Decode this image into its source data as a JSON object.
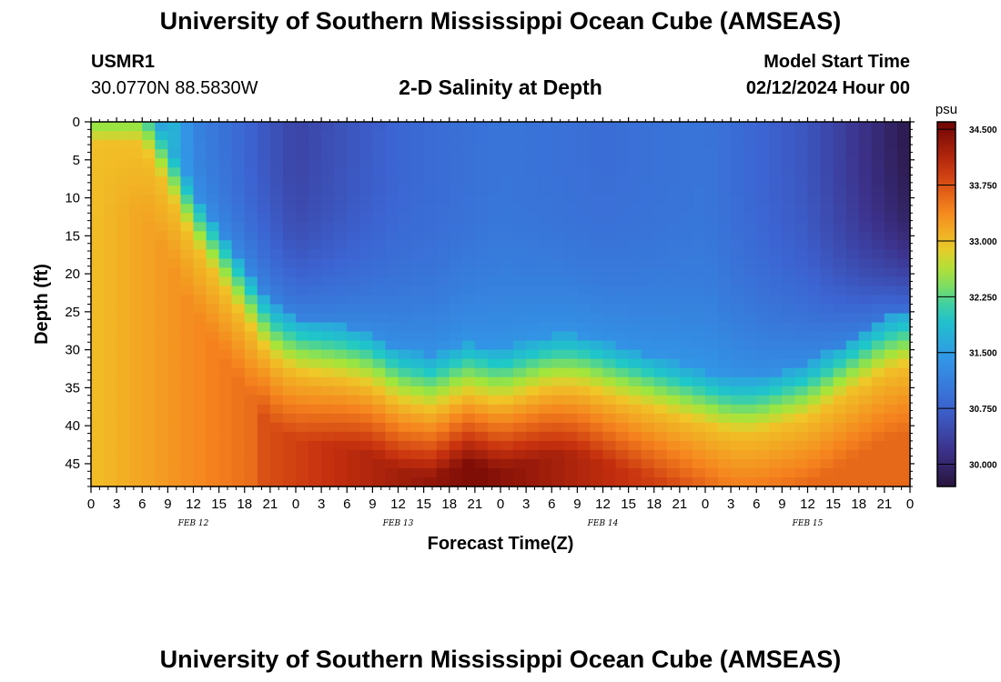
{
  "header": {
    "title": "University of Southern Mississippi Ocean Cube (AMSEAS)",
    "station": "USMR1",
    "coords": "30.0770N  88.5830W",
    "plot_title": "2-D Salinity at Depth",
    "model_start_label": "Model Start Time",
    "model_start_value": "02/12/2024 Hour 00"
  },
  "footer": {
    "title": "University of Southern Mississippi Ocean Cube (AMSEAS)"
  },
  "chart_data": {
    "type": "heatmap",
    "title": "2-D Salinity at Depth",
    "xlabel": "Forecast Time(Z)",
    "ylabel": "Depth (ft)",
    "x_ticks": [
      "0",
      "3",
      "6",
      "9",
      "12",
      "15",
      "18",
      "21",
      "0",
      "3",
      "6",
      "9",
      "12",
      "15",
      "18",
      "21",
      "0",
      "3",
      "6",
      "9",
      "12",
      "15",
      "18",
      "21",
      "0",
      "3",
      "6",
      "9",
      "12",
      "15",
      "18",
      "21",
      "0"
    ],
    "x_hours_range": [
      0,
      96
    ],
    "date_labels": [
      {
        "label": "FEB 12",
        "hour": 12
      },
      {
        "label": "FEB 13",
        "hour": 36
      },
      {
        "label": "FEB 14",
        "hour": 60
      },
      {
        "label": "FEB 15",
        "hour": 84
      }
    ],
    "y_ticks": [
      "0",
      "5",
      "10",
      "15",
      "20",
      "25",
      "30",
      "35",
      "40",
      "45"
    ],
    "y_range_ft": [
      0,
      48
    ],
    "colorbar": {
      "unit": "psu",
      "ticks": [
        "34.500",
        "33.750",
        "33.000",
        "32.250",
        "31.500",
        "30.750",
        "30.000"
      ],
      "range": [
        29.7,
        34.6
      ]
    },
    "interface_depth_ft": [
      {
        "hour": 0,
        "depth": 0
      },
      {
        "hour": 6,
        "depth": 0
      },
      {
        "hour": 9,
        "depth": 6
      },
      {
        "hour": 12,
        "depth": 13
      },
      {
        "hour": 15,
        "depth": 18
      },
      {
        "hour": 18,
        "depth": 23
      },
      {
        "hour": 21,
        "depth": 28
      },
      {
        "hour": 24,
        "depth": 30
      },
      {
        "hour": 30,
        "depth": 31
      },
      {
        "hour": 33,
        "depth": 32
      },
      {
        "hour": 36,
        "depth": 34
      },
      {
        "hour": 40,
        "depth": 35
      },
      {
        "hour": 44,
        "depth": 33
      },
      {
        "hour": 48,
        "depth": 34
      },
      {
        "hour": 51,
        "depth": 33
      },
      {
        "hour": 54,
        "depth": 32
      },
      {
        "hour": 57,
        "depth": 32
      },
      {
        "hour": 60,
        "depth": 33
      },
      {
        "hour": 63,
        "depth": 34
      },
      {
        "hour": 66,
        "depth": 35
      },
      {
        "hour": 69,
        "depth": 36
      },
      {
        "hour": 72,
        "depth": 37
      },
      {
        "hour": 75,
        "depth": 38
      },
      {
        "hour": 78,
        "depth": 38
      },
      {
        "hour": 81,
        "depth": 37
      },
      {
        "hour": 84,
        "depth": 36
      },
      {
        "hour": 87,
        "depth": 34
      },
      {
        "hour": 90,
        "depth": 32
      },
      {
        "hour": 93,
        "depth": 30
      },
      {
        "hour": 96,
        "depth": 29
      }
    ],
    "bottom_salinity_psu": {
      "surface_near_shore": 33.0,
      "deep_max": 34.5
    },
    "surface_salinity_psu": [
      {
        "hour": 0,
        "value": 33.0
      },
      {
        "hour": 6,
        "value": 32.6
      },
      {
        "hour": 12,
        "value": 31.2
      },
      {
        "hour": 24,
        "value": 30.4
      },
      {
        "hour": 36,
        "value": 30.8
      },
      {
        "hour": 48,
        "value": 31.0
      },
      {
        "hour": 60,
        "value": 30.9
      },
      {
        "hour": 72,
        "value": 31.0
      },
      {
        "hour": 84,
        "value": 30.6
      },
      {
        "hour": 96,
        "value": 29.8
      }
    ]
  }
}
